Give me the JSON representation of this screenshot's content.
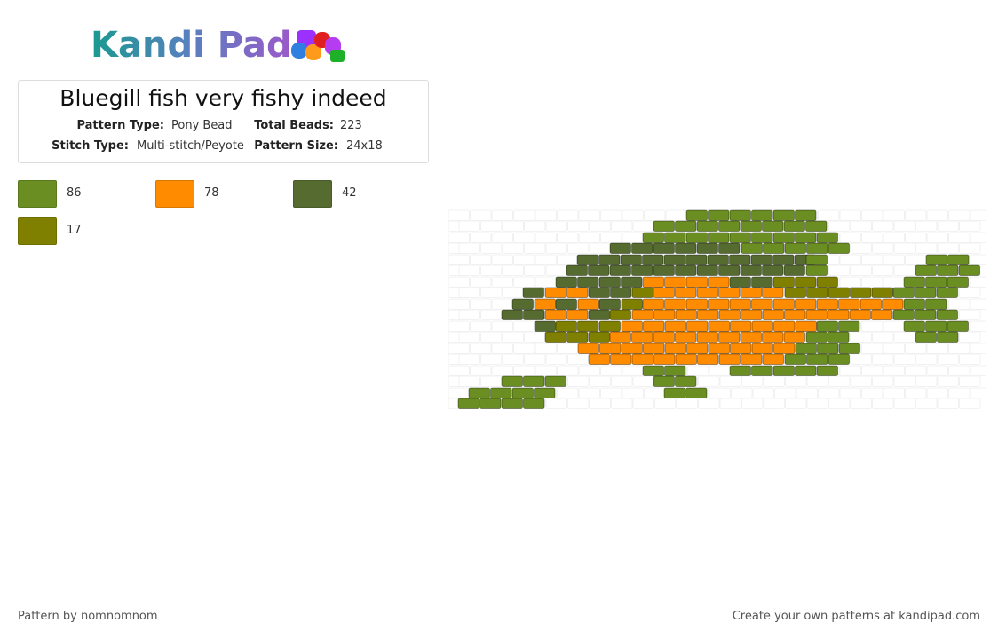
{
  "logo": "Kandi Pad",
  "title": "Bluegill fish very fishy indeed",
  "info": {
    "pattern_type_label": "Pattern Type:",
    "pattern_type": "Pony Bead",
    "total_beads_label": "Total Beads:",
    "total_beads": 223,
    "stitch_type_label": "Stitch Type:",
    "stitch_type": "Multi-stitch/Peyote",
    "pattern_size_label": "Pattern Size:",
    "pattern_size": "24x18"
  },
  "colors": [
    {
      "color": "#6b8e23",
      "count": 86
    },
    {
      "color": "#ff8c00",
      "count": 78
    },
    {
      "color": "#556b2f",
      "count": 42
    },
    {
      "color": "#808000",
      "count": 17
    }
  ],
  "footer": {
    "left": "Pattern by nomnomnom",
    "right": "Create your own patterns at kandipad.com"
  }
}
